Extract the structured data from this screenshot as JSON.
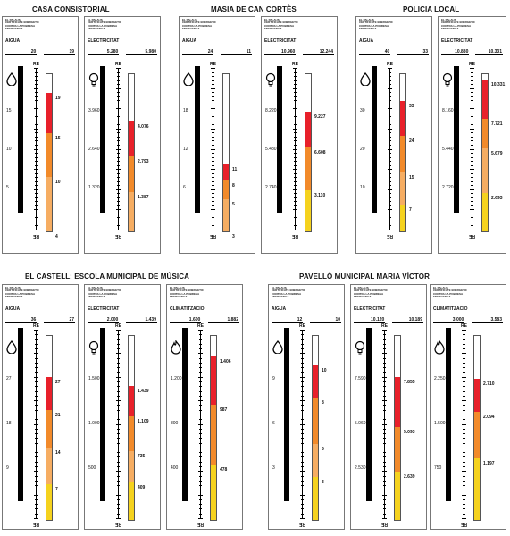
{
  "colors": {
    "red": "#e8202a",
    "orange_dark": "#f28a2a",
    "orange_light": "#f6ad62",
    "yellow": "#f5d21e",
    "bar": "#000000"
  },
  "header_lines": [
    "EL PALAUS",
    "CERTIFICATE ENERGETIC",
    "CONTRA LA POBRESA",
    "ENERGETICA"
  ],
  "ruler_label": "RE",
  "buildings": [
    {
      "name": "CASA CONSISTORIAL",
      "panels": [
        {
          "label": "AIGUA",
          "icon": "drop-icon",
          "value_left": "20",
          "value_right": "19",
          "scale": [
            "15",
            "10",
            "5"
          ],
          "tube": [
            "19",
            "15",
            "10",
            "4"
          ]
        },
        {
          "label": "ELECTRICITAT",
          "icon": "bulb-icon",
          "value_left": "5.280",
          "value_right": "5.980",
          "scale": [
            "3.960",
            "2.640",
            "1.320"
          ],
          "tube": [
            "4.076",
            "2.793",
            "1.387"
          ]
        }
      ]
    },
    {
      "name": "MASIA DE CAN CORTÈS",
      "panels": [
        {
          "label": "AIGUA",
          "icon": "drop-icon",
          "value_left": "24",
          "value_right": "11",
          "scale": [
            "18",
            "12",
            "6"
          ],
          "tube": [
            "11",
            "8",
            "5",
            "3"
          ]
        },
        {
          "label": "ELECTRICITAT",
          "icon": "bulb-icon",
          "value_left": "10.960",
          "value_right": "12.244",
          "scale": [
            "8.220",
            "5.480",
            "2.740"
          ],
          "tube": [
            "9.227",
            "6.608",
            "3.110"
          ]
        }
      ]
    },
    {
      "name": "POLICIA LOCAL",
      "panels": [
        {
          "label": "AIGUA",
          "icon": "drop-icon",
          "value_left": "40",
          "value_right": "33",
          "scale": [
            "30",
            "20",
            "10"
          ],
          "tube": [
            "33",
            "24",
            "15",
            "7"
          ]
        },
        {
          "label": "ELECTRICITAT",
          "icon": "bulb-icon",
          "value_left": "10.880",
          "value_right": "10.331",
          "scale": [
            "8.160",
            "5.440",
            "2.720"
          ],
          "tube": [
            "10.331",
            "7.721",
            "5.679",
            "2.693"
          ]
        }
      ]
    },
    {
      "name": "EL CASTELL: ESCOLA MUNICIPAL DE MÚSICA",
      "panels": [
        {
          "label": "AIGUA",
          "icon": "drop-icon",
          "value_left": "36",
          "value_right": "27",
          "scale": [
            "27",
            "18",
            "9"
          ],
          "tube": [
            "27",
            "21",
            "14",
            "7"
          ]
        },
        {
          "label": "ELECTRICITAT",
          "icon": "bulb-icon",
          "value_left": "2.000",
          "value_right": "1.439",
          "scale": [
            "1.500",
            "1.000",
            "500"
          ],
          "tube": [
            "1.439",
            "1.109",
            "735",
            "409"
          ]
        },
        {
          "label": "CLIMATITZACIÓ",
          "icon": "flame-icon",
          "value_left": "1.600",
          "value_right": "1.882",
          "scale": [
            "1.200",
            "800",
            "400"
          ],
          "tube": [
            "1.406",
            "987",
            "478"
          ]
        }
      ]
    },
    {
      "name": "PAVELLÓ MUNICIPAL MARIA VÍCTOR",
      "panels": [
        {
          "label": "AIGUA",
          "icon": "drop-icon",
          "value_left": "12",
          "value_right": "10",
          "scale": [
            "9",
            "6",
            "3"
          ],
          "tube": [
            "10",
            "8",
            "5",
            "3"
          ]
        },
        {
          "label": "ELECTRICITAT",
          "icon": "bulb-icon",
          "value_left": "10.120",
          "value_right": "10.189",
          "scale": [
            "7.590",
            "5.060",
            "2.530"
          ],
          "tube": [
            "7.855",
            "5.093",
            "2.639"
          ]
        },
        {
          "label": "CLIMATITZACIÓ",
          "icon": "flame-icon",
          "value_left": "3.000",
          "value_right": "3.583",
          "scale": [
            "2.250",
            "1.500",
            "750"
          ],
          "tube": [
            "2.710",
            "2.094",
            "1.197"
          ]
        }
      ]
    }
  ]
}
